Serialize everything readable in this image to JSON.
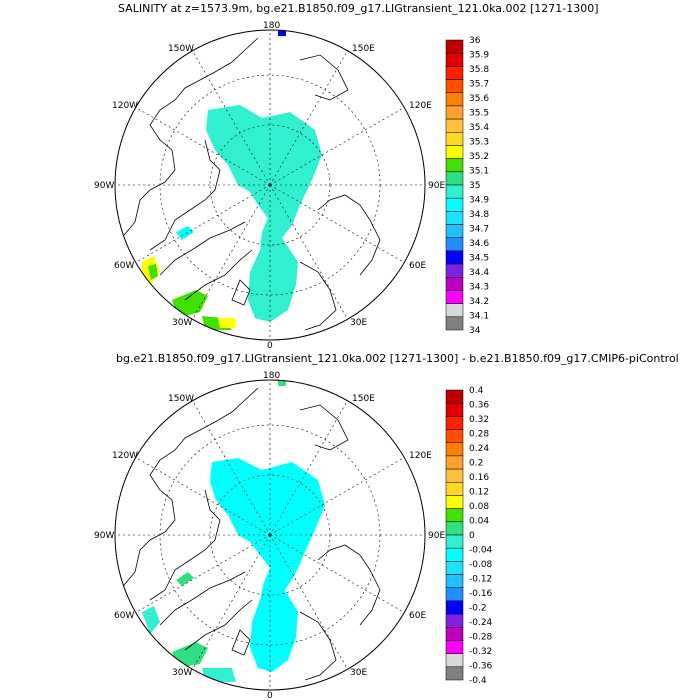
{
  "panel_top": {
    "title": "SALINITY at z=1573.9m, bg.e21.B1850.f09_g17.LIGtransient_121.0ka.002 [1271-1300]",
    "longitude_labels": [
      "180",
      "150E",
      "120E",
      "90E",
      "60E",
      "30E",
      "0",
      "30W",
      "60W",
      "90W",
      "120W",
      "150W"
    ],
    "colorbar": {
      "labels": [
        "36",
        "35.9",
        "35.8",
        "35.7",
        "35.6",
        "35.5",
        "35.4",
        "35.3",
        "35.2",
        "35.1",
        "35",
        "34.9",
        "34.8",
        "34.7",
        "34.6",
        "34.5",
        "34.4",
        "34.3",
        "34.2",
        "34.1",
        "34"
      ],
      "colors": [
        "#c00000",
        "#e00000",
        "#ff2000",
        "#ff5000",
        "#ff8000",
        "#ffa030",
        "#ffc040",
        "#ffd820",
        "#ffff00",
        "#40e000",
        "#30e080",
        "#30f0d0",
        "#00ffff",
        "#20e0ff",
        "#20c0ff",
        "#2090ff",
        "#0000ff",
        "#8020e0",
        "#c000c0",
        "#ff00ff",
        "#d8d8d8",
        "#808080"
      ]
    }
  },
  "panel_bottom": {
    "title": "bg.e21.B1850.f09_g17.LIGtransient_121.0ka.002 [1271-1300] - b.e21.B1850.f09_g17.CMIP6-piControl",
    "longitude_labels": [
      "180",
      "150E",
      "120E",
      "90E",
      "60E",
      "30E",
      "0",
      "30W",
      "60W",
      "90W",
      "120W",
      "150W"
    ],
    "colorbar": {
      "labels": [
        "0.4",
        "0.36",
        "0.32",
        "0.28",
        "0.24",
        "0.2",
        "0.16",
        "0.12",
        "0.08",
        "0.04",
        "0",
        "-0.04",
        "-0.08",
        "-0.12",
        "-0.16",
        "-0.2",
        "-0.24",
        "-0.28",
        "-0.32",
        "-0.36",
        "-0.4"
      ],
      "colors": [
        "#c00000",
        "#e00000",
        "#ff2000",
        "#ff5000",
        "#ff8000",
        "#ffa030",
        "#ffc040",
        "#ffd820",
        "#ffff00",
        "#40e000",
        "#30e080",
        "#30f0d0",
        "#00ffff",
        "#20e0ff",
        "#20c0ff",
        "#2090ff",
        "#0000ff",
        "#8020e0",
        "#c000c0",
        "#ff00ff",
        "#d8d8d8",
        "#808080"
      ]
    }
  }
}
